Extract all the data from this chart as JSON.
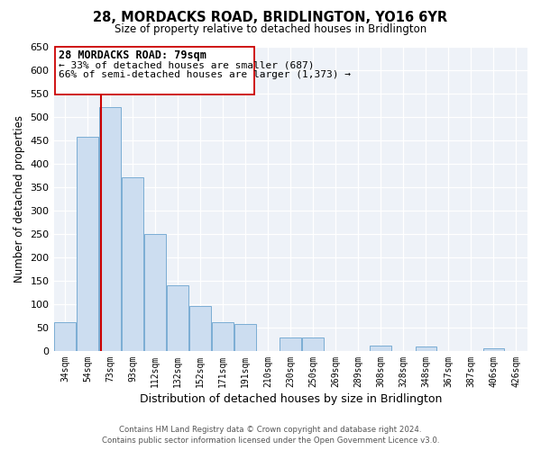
{
  "title": "28, MORDACKS ROAD, BRIDLINGTON, YO16 6YR",
  "subtitle": "Size of property relative to detached houses in Bridlington",
  "xlabel": "Distribution of detached houses by size in Bridlington",
  "ylabel": "Number of detached properties",
  "bar_labels": [
    "34sqm",
    "54sqm",
    "73sqm",
    "93sqm",
    "112sqm",
    "132sqm",
    "152sqm",
    "171sqm",
    "191sqm",
    "210sqm",
    "230sqm",
    "250sqm",
    "269sqm",
    "289sqm",
    "308sqm",
    "328sqm",
    "348sqm",
    "367sqm",
    "387sqm",
    "406sqm",
    "426sqm"
  ],
  "bar_values": [
    62,
    457,
    520,
    370,
    250,
    140,
    95,
    62,
    58,
    0,
    28,
    28,
    0,
    0,
    12,
    0,
    10,
    0,
    0,
    5,
    0
  ],
  "bar_color": "#ccddf0",
  "bar_edge_color": "#7aadd4",
  "ylim": [
    0,
    650
  ],
  "yticks": [
    0,
    50,
    100,
    150,
    200,
    250,
    300,
    350,
    400,
    450,
    500,
    550,
    600,
    650
  ],
  "red_line_index": 2,
  "annotation_title": "28 MORDACKS ROAD: 79sqm",
  "annotation_line1": "← 33% of detached houses are smaller (687)",
  "annotation_line2": "66% of semi-detached houses are larger (1,373) →",
  "footer_line1": "Contains HM Land Registry data © Crown copyright and database right 2024.",
  "footer_line2": "Contains public sector information licensed under the Open Government Licence v3.0.",
  "background_color": "#ffffff",
  "plot_bg_color": "#eef2f8"
}
